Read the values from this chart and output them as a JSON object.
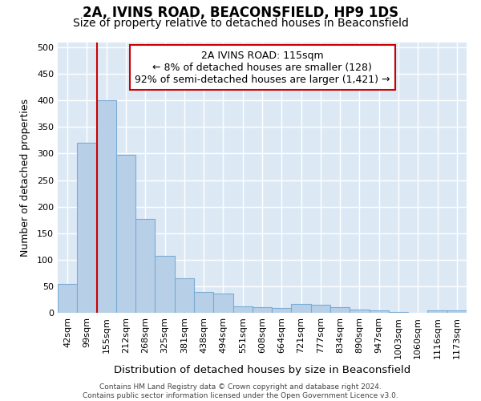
{
  "title1": "2A, IVINS ROAD, BEACONSFIELD, HP9 1DS",
  "title2": "Size of property relative to detached houses in Beaconsfield",
  "xlabel": "Distribution of detached houses by size in Beaconsfield",
  "ylabel": "Number of detached properties",
  "categories": [
    "42sqm",
    "99sqm",
    "155sqm",
    "212sqm",
    "268sqm",
    "325sqm",
    "381sqm",
    "438sqm",
    "494sqm",
    "551sqm",
    "608sqm",
    "664sqm",
    "721sqm",
    "777sqm",
    "834sqm",
    "890sqm",
    "947sqm",
    "1003sqm",
    "1060sqm",
    "1116sqm",
    "1173sqm"
  ],
  "values": [
    55,
    320,
    400,
    297,
    177,
    107,
    65,
    40,
    36,
    12,
    10,
    9,
    17,
    15,
    10,
    6,
    4,
    1,
    0,
    5,
    5
  ],
  "bar_color": "#b8cfe8",
  "bar_edge_color": "#7aabd4",
  "background_color": "#dce9f5",
  "grid_color": "#ffffff",
  "annotation_box_color": "#cc0000",
  "vline_color": "#cc0000",
  "vline_x": 1.5,
  "annotation_text": "2A IVINS ROAD: 115sqm\n← 8% of detached houses are smaller (128)\n92% of semi-detached houses are larger (1,421) →",
  "ylim": [
    0,
    510
  ],
  "yticks": [
    0,
    50,
    100,
    150,
    200,
    250,
    300,
    350,
    400,
    450,
    500
  ],
  "footer": "Contains HM Land Registry data © Crown copyright and database right 2024.\nContains public sector information licensed under the Open Government Licence v3.0.",
  "title1_fontsize": 12,
  "title2_fontsize": 10,
  "xlabel_fontsize": 9.5,
  "ylabel_fontsize": 9,
  "annotation_fontsize": 9,
  "tick_fontsize": 8,
  "footer_fontsize": 6.5
}
